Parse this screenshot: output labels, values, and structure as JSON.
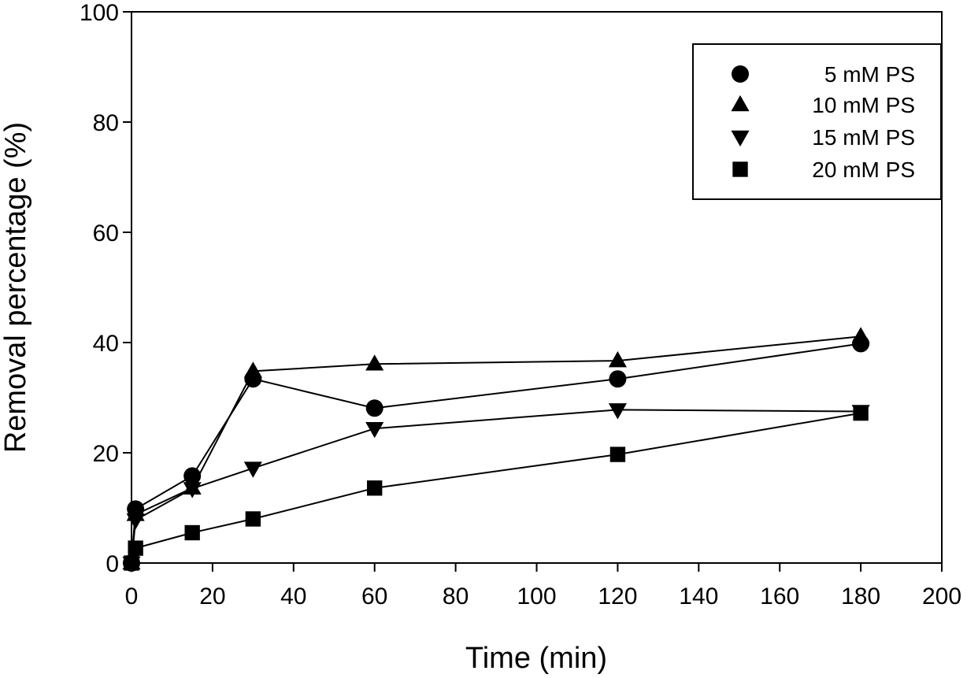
{
  "chart_data": {
    "type": "line",
    "title": "",
    "xlabel": "Time (min)",
    "ylabel": "Removal percentage (%)",
    "xlim": [
      0,
      200
    ],
    "ylim": [
      0,
      100
    ],
    "xticks": [
      0,
      20,
      40,
      60,
      80,
      100,
      120,
      140,
      160,
      180,
      200
    ],
    "yticks": [
      0,
      20,
      40,
      60,
      80,
      100
    ],
    "grid": false,
    "legend_position": "top-right",
    "series": [
      {
        "name": "5 mM PS",
        "marker": "circle",
        "x": [
          0,
          1,
          15,
          30,
          60,
          120,
          180
        ],
        "y": [
          0,
          9.8,
          15.8,
          33.4,
          28.1,
          33.4,
          39.8
        ]
      },
      {
        "name": "10 mM PS",
        "marker": "triangle-up",
        "x": [
          0,
          1,
          15,
          30,
          60,
          120,
          180
        ],
        "y": [
          0,
          8.8,
          13.6,
          34.8,
          36.1,
          36.7,
          41.1
        ]
      },
      {
        "name": "15 mM PS",
        "marker": "triangle-down",
        "x": [
          0,
          1,
          15,
          30,
          60,
          120,
          180
        ],
        "y": [
          0,
          7.8,
          13.5,
          17.2,
          24.4,
          27.8,
          27.5
        ]
      },
      {
        "name": "20 mM PS",
        "marker": "square",
        "x": [
          0,
          1,
          15,
          30,
          60,
          120,
          180
        ],
        "y": [
          0,
          2.7,
          5.5,
          8.0,
          13.6,
          19.7,
          27.2
        ]
      }
    ]
  }
}
